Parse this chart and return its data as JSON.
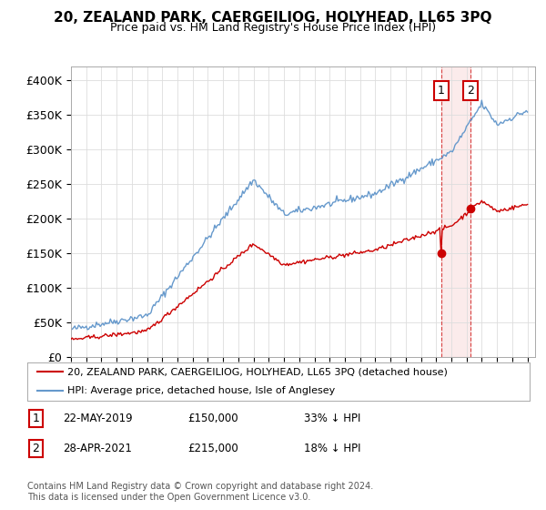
{
  "title": "20, ZEALAND PARK, CAERGEILIOG, HOLYHEAD, LL65 3PQ",
  "subtitle": "Price paid vs. HM Land Registry's House Price Index (HPI)",
  "ylim": [
    0,
    420000
  ],
  "yticks": [
    0,
    50000,
    100000,
    150000,
    200000,
    250000,
    300000,
    350000,
    400000
  ],
  "ytick_labels": [
    "£0",
    "£50K",
    "£100K",
    "£150K",
    "£200K",
    "£250K",
    "£300K",
    "£350K",
    "£400K"
  ],
  "hpi_color": "#6699cc",
  "price_color": "#cc0000",
  "transaction1_date": "22-MAY-2019",
  "transaction1_price": 150000,
  "transaction1_pct": "33% ↓ HPI",
  "transaction2_date": "28-APR-2021",
  "transaction2_price": 215000,
  "transaction2_pct": "18% ↓ HPI",
  "legend_label1": "20, ZEALAND PARK, CAERGEILIOG, HOLYHEAD, LL65 3PQ (detached house)",
  "legend_label2": "HPI: Average price, detached house, Isle of Anglesey",
  "footer": "Contains HM Land Registry data © Crown copyright and database right 2024.\nThis data is licensed under the Open Government Licence v3.0.",
  "background_color": "#ffffff",
  "grid_color": "#dddddd"
}
